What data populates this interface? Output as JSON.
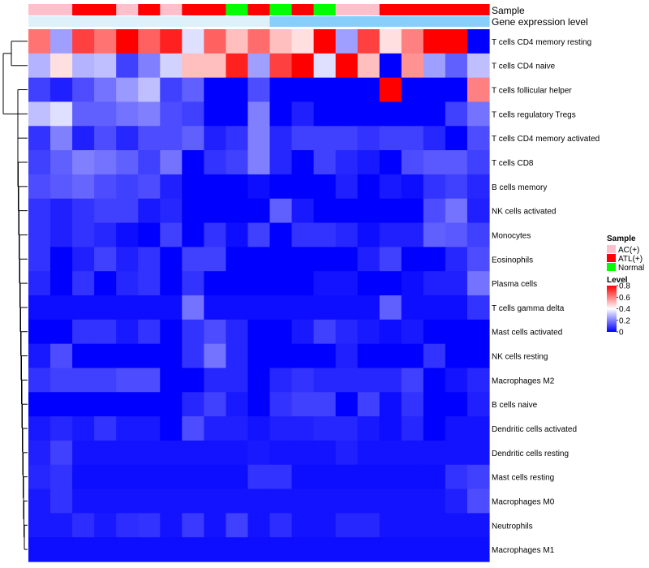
{
  "chart_data": {
    "type": "heatmap",
    "title": "",
    "annotation_titles": {
      "sample": "Sample",
      "expression": "Gene expression level"
    },
    "legend_sample": {
      "title": "Sample",
      "entries": [
        {
          "label": "AC(+)",
          "color": "#ffc0cb"
        },
        {
          "label": "ATL(+)",
          "color": "#ff0000"
        },
        {
          "label": "Normal",
          "color": "#00ff00"
        }
      ]
    },
    "legend_level": {
      "title": "Level",
      "ticks": [
        "0.8",
        "0.6",
        "0.4",
        "0.2",
        "0"
      ],
      "tick_values": [
        0.8,
        0.6,
        0.4,
        0.2,
        0
      ],
      "range": [
        0,
        0.8
      ],
      "colors": {
        "low": "#0000ff",
        "mid": "#ffffff",
        "high": "#ff0000"
      }
    },
    "sample_groups": [
      "AC(+)",
      "AC(+)",
      "ATL(+)",
      "ATL(+)",
      "AC(+)",
      "ATL(+)",
      "AC(+)",
      "ATL(+)",
      "ATL(+)",
      "Normal",
      "ATL(+)",
      "Normal",
      "ATL(+)",
      "Normal",
      "AC(+)",
      "AC(+)",
      "ATL(+)",
      "ATL(+)",
      "ATL(+)",
      "ATL(+)",
      "ATL(+)"
    ],
    "expression_level": [
      "low",
      "low",
      "low",
      "low",
      "low",
      "low",
      "low",
      "low",
      "low",
      "low",
      "low",
      "high",
      "high",
      "high",
      "high",
      "high",
      "high",
      "high",
      "high",
      "high",
      "high"
    ],
    "expression_colors": {
      "low": "#ddf1fb",
      "high": "#87cefa"
    },
    "rows": [
      "T cells CD4 memory resting",
      "T cells CD4 naive",
      "T cells follicular helper",
      "T cells regulatory  Tregs",
      "T cells CD4 memory activated",
      "T cells CD8",
      "B cells memory",
      "NK cells activated",
      "Monocytes",
      "Eosinophils",
      "Plasma cells",
      "T cells gamma delta",
      "Mast cells activated",
      "NK cells resting",
      "Macrophages M2",
      "B cells naive",
      "Dendritic cells activated",
      "Dendritic cells resting",
      "Mast cells resting",
      "Macrophages M0",
      "Neutrophils",
      "Macrophages M1"
    ],
    "values": [
      [
        0.62,
        0.25,
        0.7,
        0.62,
        0.8,
        0.65,
        0.75,
        0.35,
        0.65,
        0.5,
        0.63,
        0.5,
        0.45,
        0.8,
        0.25,
        0.7,
        0.45,
        0.6,
        0.8,
        0.8,
        0.0
      ],
      [
        0.28,
        0.45,
        0.28,
        0.3,
        0.1,
        0.2,
        0.33,
        0.5,
        0.5,
        0.75,
        0.25,
        0.7,
        0.8,
        0.35,
        0.8,
        0.5,
        0.0,
        0.57,
        0.25,
        0.15,
        0.3
      ],
      [
        0.1,
        0.05,
        0.12,
        0.18,
        0.24,
        0.3,
        0.1,
        0.15,
        0.0,
        0.0,
        0.12,
        0.0,
        0.0,
        0.0,
        0.0,
        0.0,
        0.8,
        0.0,
        0.0,
        0.0,
        0.6
      ],
      [
        0.3,
        0.35,
        0.15,
        0.15,
        0.18,
        0.2,
        0.12,
        0.1,
        0.0,
        0.0,
        0.2,
        0.0,
        0.05,
        0.0,
        0.0,
        0.0,
        0.0,
        0.0,
        0.0,
        0.1,
        0.18
      ],
      [
        0.08,
        0.2,
        0.05,
        0.12,
        0.06,
        0.12,
        0.12,
        0.15,
        0.05,
        0.08,
        0.2,
        0.06,
        0.1,
        0.1,
        0.1,
        0.08,
        0.1,
        0.1,
        0.06,
        0.0,
        0.12
      ],
      [
        0.1,
        0.15,
        0.2,
        0.18,
        0.15,
        0.1,
        0.18,
        0.0,
        0.08,
        0.1,
        0.2,
        0.06,
        0.0,
        0.1,
        0.06,
        0.04,
        0.0,
        0.12,
        0.14,
        0.14,
        0.1
      ],
      [
        0.12,
        0.14,
        0.16,
        0.12,
        0.1,
        0.12,
        0.05,
        0.0,
        0.0,
        0.0,
        0.02,
        0.0,
        0.0,
        0.0,
        0.05,
        0.0,
        0.04,
        0.02,
        0.08,
        0.1,
        0.06
      ],
      [
        0.08,
        0.05,
        0.08,
        0.1,
        0.1,
        0.04,
        0.06,
        0.0,
        0.0,
        0.0,
        0.0,
        0.15,
        0.04,
        0.0,
        0.0,
        0.0,
        0.0,
        0.0,
        0.12,
        0.18,
        0.05
      ],
      [
        0.08,
        0.05,
        0.08,
        0.06,
        0.02,
        0.0,
        0.1,
        0.0,
        0.08,
        0.02,
        0.1,
        0.0,
        0.08,
        0.08,
        0.06,
        0.02,
        0.05,
        0.05,
        0.15,
        0.14,
        0.1
      ],
      [
        0.08,
        0.0,
        0.05,
        0.1,
        0.05,
        0.08,
        0.0,
        0.1,
        0.1,
        0.0,
        0.0,
        0.0,
        0.0,
        0.0,
        0.0,
        0.05,
        0.1,
        0.0,
        0.0,
        0.06,
        0.12
      ],
      [
        0.06,
        0.0,
        0.08,
        0.0,
        0.06,
        0.08,
        0.0,
        0.08,
        0.0,
        0.0,
        0.0,
        0.0,
        0.0,
        0.03,
        0.03,
        0.0,
        0.0,
        0.02,
        0.05,
        0.05,
        0.18
      ],
      [
        0.02,
        0.02,
        0.02,
        0.02,
        0.02,
        0.02,
        0.02,
        0.18,
        0.02,
        0.02,
        0.02,
        0.02,
        0.02,
        0.02,
        0.02,
        0.02,
        0.15,
        0.02,
        0.02,
        0.02,
        0.08
      ],
      [
        0.0,
        0.0,
        0.08,
        0.08,
        0.04,
        0.08,
        0.0,
        0.08,
        0.12,
        0.06,
        0.0,
        0.0,
        0.04,
        0.1,
        0.06,
        0.04,
        0.02,
        0.04,
        0.0,
        0.0,
        0.0
      ],
      [
        0.04,
        0.12,
        0.0,
        0.0,
        0.0,
        0.0,
        0.0,
        0.08,
        0.18,
        0.06,
        0.0,
        0.0,
        0.0,
        0.0,
        0.05,
        0.0,
        0.0,
        0.0,
        0.08,
        0.0,
        0.0
      ],
      [
        0.08,
        0.1,
        0.1,
        0.1,
        0.12,
        0.12,
        0.0,
        0.0,
        0.06,
        0.06,
        0.0,
        0.06,
        0.08,
        0.06,
        0.06,
        0.06,
        0.06,
        0.1,
        0.0,
        0.03,
        0.06
      ],
      [
        0.0,
        0.0,
        0.0,
        0.0,
        0.0,
        0.0,
        0.0,
        0.06,
        0.1,
        0.04,
        0.0,
        0.08,
        0.1,
        0.1,
        0.0,
        0.1,
        0.02,
        0.08,
        0.0,
        0.0,
        0.05
      ],
      [
        0.04,
        0.06,
        0.04,
        0.08,
        0.04,
        0.04,
        0.0,
        0.12,
        0.05,
        0.05,
        0.03,
        0.05,
        0.05,
        0.06,
        0.06,
        0.04,
        0.02,
        0.06,
        0.0,
        0.03,
        0.03
      ],
      [
        0.05,
        0.1,
        0.03,
        0.03,
        0.03,
        0.03,
        0.03,
        0.03,
        0.03,
        0.03,
        0.04,
        0.03,
        0.03,
        0.03,
        0.05,
        0.03,
        0.03,
        0.03,
        0.03,
        0.03,
        0.03
      ],
      [
        0.06,
        0.08,
        0.02,
        0.02,
        0.02,
        0.02,
        0.02,
        0.02,
        0.02,
        0.02,
        0.08,
        0.08,
        0.02,
        0.02,
        0.02,
        0.02,
        0.02,
        0.02,
        0.02,
        0.08,
        0.1
      ],
      [
        0.04,
        0.08,
        0.03,
        0.03,
        0.03,
        0.03,
        0.03,
        0.03,
        0.03,
        0.03,
        0.03,
        0.03,
        0.03,
        0.03,
        0.03,
        0.03,
        0.03,
        0.03,
        0.03,
        0.05,
        0.12
      ],
      [
        0.04,
        0.04,
        0.07,
        0.04,
        0.07,
        0.08,
        0.03,
        0.09,
        0.03,
        0.1,
        0.03,
        0.07,
        0.03,
        0.03,
        0.06,
        0.06,
        0.03,
        0.03,
        0.03,
        0.03,
        0.03
      ],
      [
        0.02,
        0.02,
        0.02,
        0.02,
        0.02,
        0.02,
        0.02,
        0.02,
        0.02,
        0.02,
        0.02,
        0.02,
        0.02,
        0.02,
        0.02,
        0.02,
        0.02,
        0.02,
        0.02,
        0.02,
        0.02
      ]
    ],
    "row_dendrogram": true,
    "grid": false,
    "legend_position": "right"
  }
}
